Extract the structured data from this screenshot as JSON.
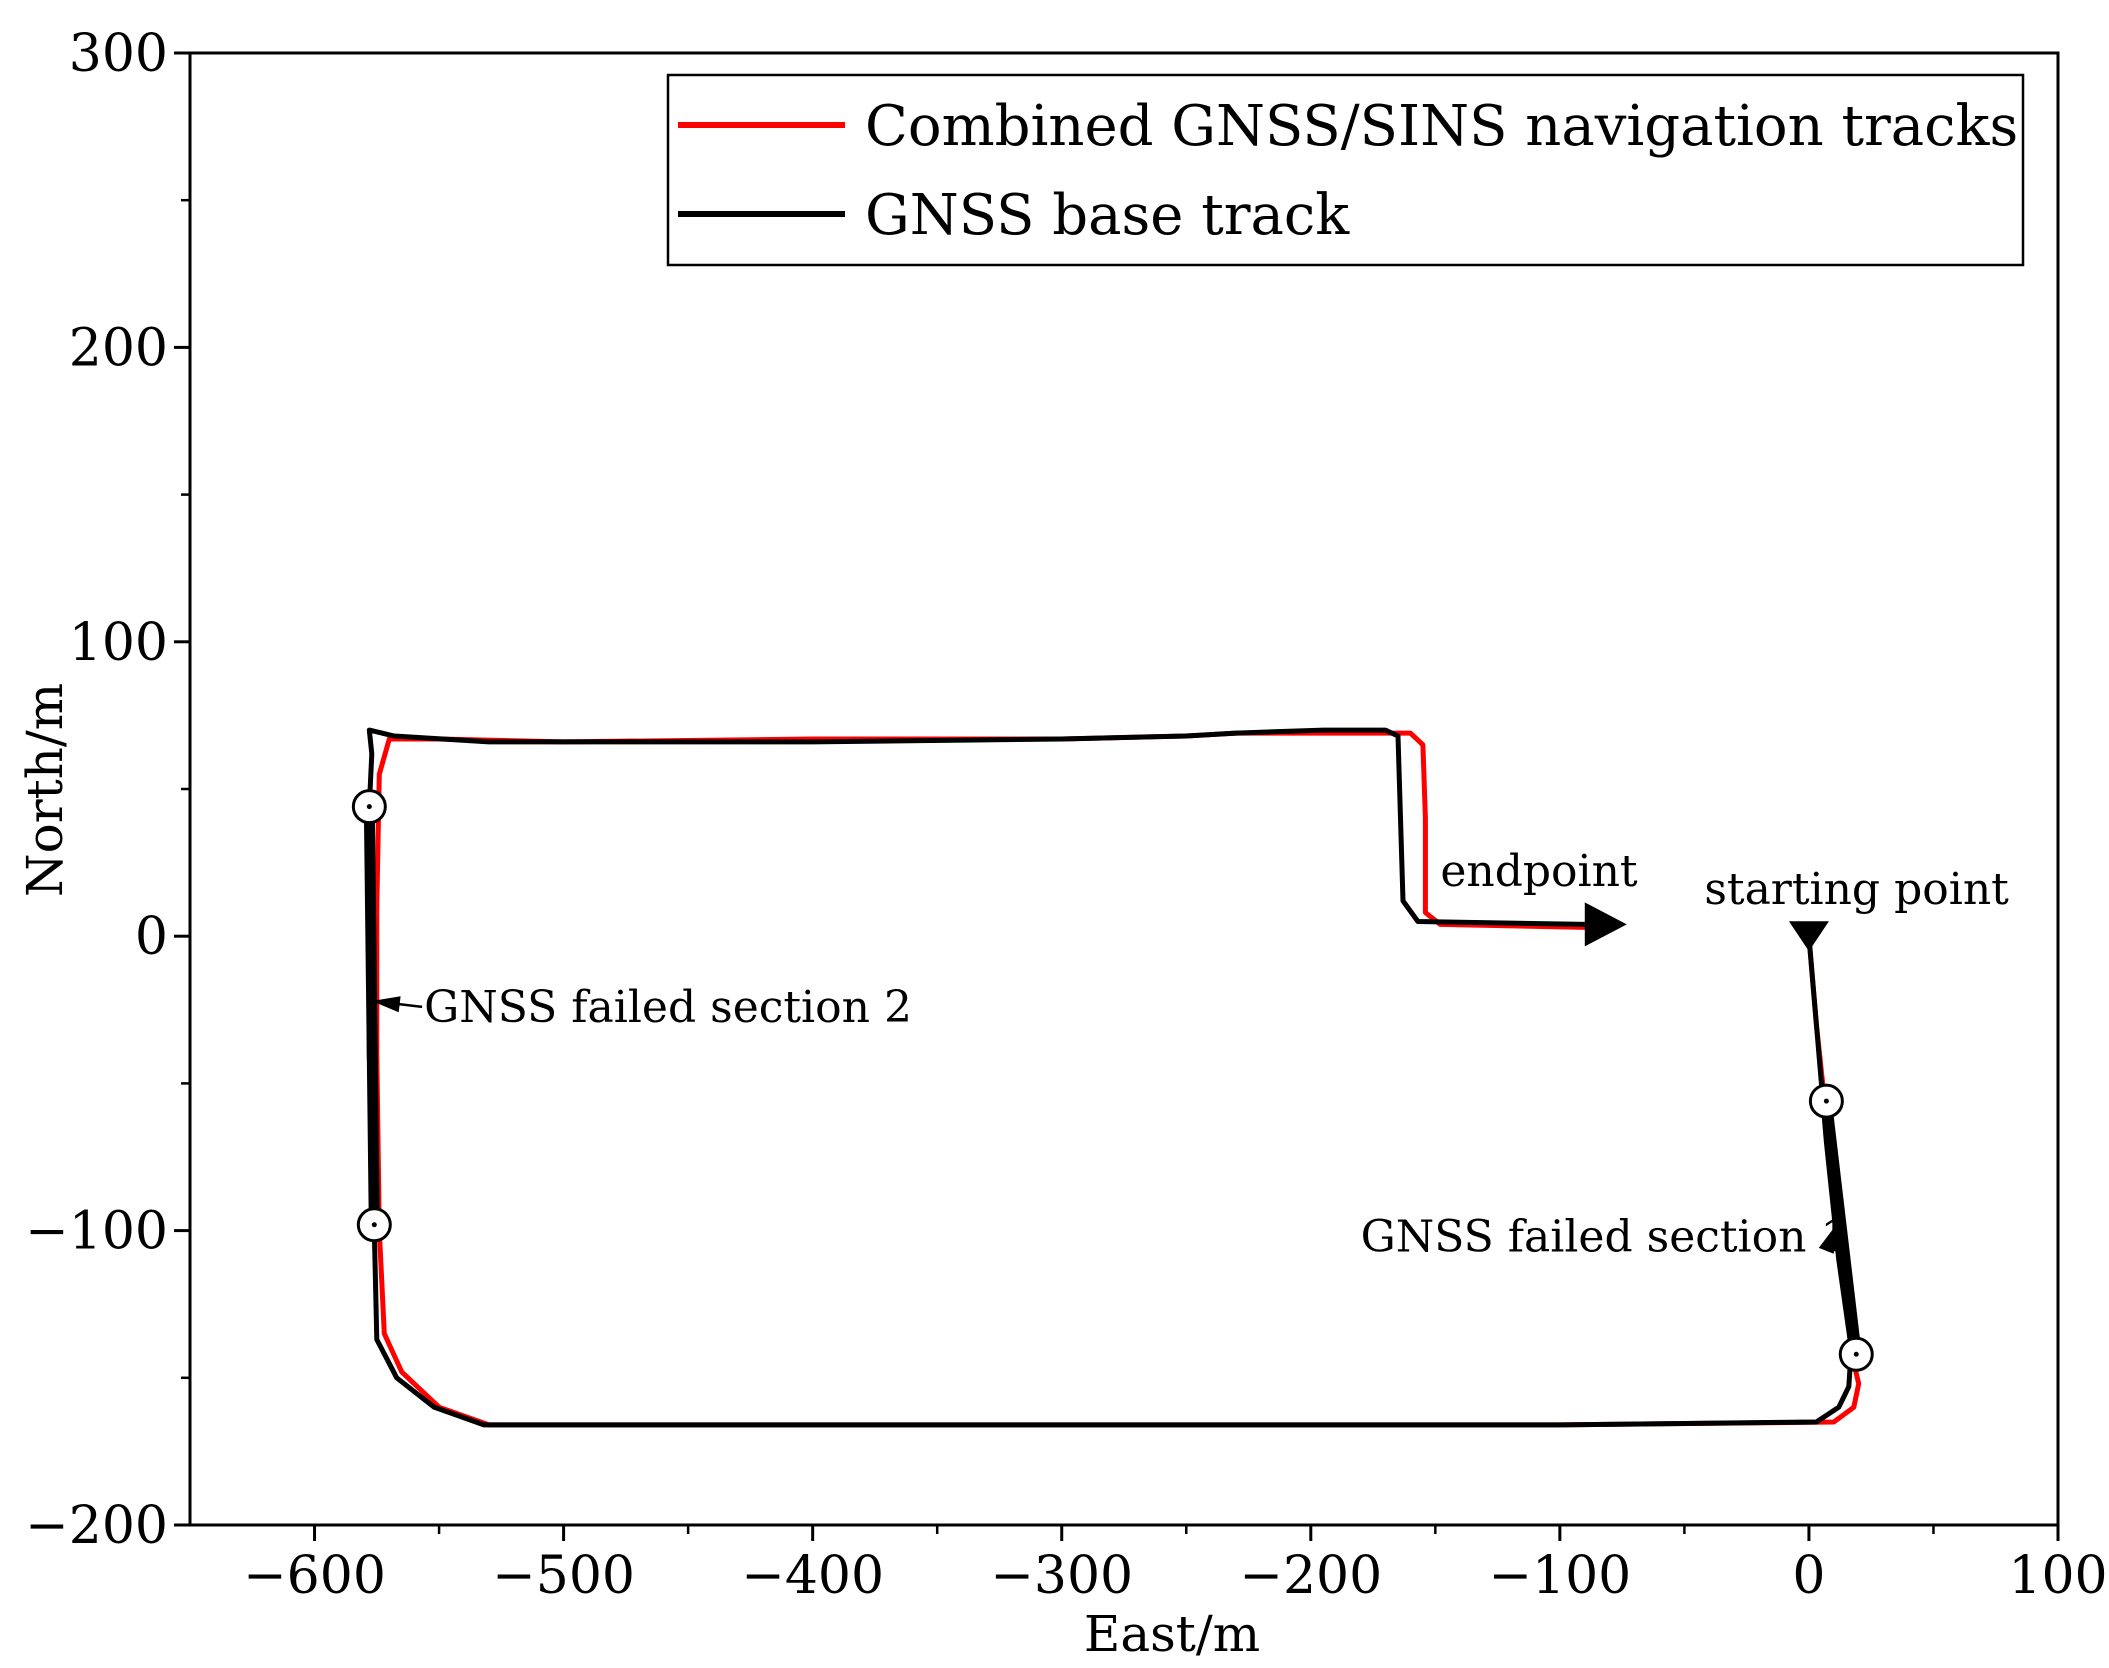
{
  "chart_data": {
    "type": "line",
    "xlabel": "East/m",
    "ylabel": "North/m",
    "xlim": [
      -650,
      100
    ],
    "ylim": [
      -200,
      300
    ],
    "x_ticks": [
      -600,
      -500,
      -400,
      -300,
      -200,
      -100,
      0,
      100
    ],
    "y_ticks": [
      -200,
      -100,
      0,
      100,
      200,
      300
    ],
    "x_tick_labels": [
      "−600",
      "−500",
      "−400",
      "−300",
      "−200",
      "−100",
      "0",
      "100"
    ],
    "y_tick_labels": [
      "−200",
      "−100",
      "0",
      "100",
      "200",
      "300"
    ],
    "grid": false,
    "legend_position": "top-right",
    "series": [
      {
        "name": "Combined GNSS/SINS navigation tracks",
        "color": "#ff0000",
        "points": [
          [
            0,
            0
          ],
          [
            3,
            -30
          ],
          [
            8,
            -70
          ],
          [
            13,
            -110
          ],
          [
            18,
            -145
          ],
          [
            20,
            -152
          ],
          [
            18,
            -160
          ],
          [
            10,
            -165
          ],
          [
            -100,
            -166
          ],
          [
            -300,
            -166
          ],
          [
            -400,
            -166
          ],
          [
            -500,
            -166
          ],
          [
            -530,
            -166
          ],
          [
            -550,
            -160
          ],
          [
            -565,
            -148
          ],
          [
            -572,
            -135
          ],
          [
            -574,
            -100
          ],
          [
            -575,
            -40
          ],
          [
            -575,
            10
          ],
          [
            -574,
            55
          ],
          [
            -570,
            67
          ],
          [
            -550,
            67
          ],
          [
            -500,
            66
          ],
          [
            -400,
            67
          ],
          [
            -300,
            67
          ],
          [
            -250,
            68
          ],
          [
            -230,
            69
          ],
          [
            -190,
            69
          ],
          [
            -160,
            69
          ],
          [
            -155,
            65
          ],
          [
            -154,
            40
          ],
          [
            -154,
            8
          ],
          [
            -148,
            4
          ],
          [
            -90,
            3
          ]
        ]
      },
      {
        "name": "GNSS base track",
        "color": "#000000",
        "points": [
          [
            0,
            0
          ],
          [
            3,
            -30
          ],
          [
            7,
            -70
          ],
          [
            12,
            -110
          ],
          [
            17,
            -140
          ],
          [
            16,
            -153
          ],
          [
            12,
            -160
          ],
          [
            3,
            -165
          ],
          [
            -100,
            -166
          ],
          [
            -300,
            -166
          ],
          [
            -400,
            -166
          ],
          [
            -500,
            -166
          ],
          [
            -532,
            -166
          ],
          [
            -552,
            -160
          ],
          [
            -567,
            -150
          ],
          [
            -575,
            -137
          ],
          [
            -576,
            -100
          ],
          [
            -578,
            -40
          ],
          [
            -578,
            10
          ],
          [
            -578,
            44
          ],
          [
            -577,
            62
          ],
          [
            -578,
            70
          ],
          [
            -568,
            68
          ],
          [
            -530,
            66
          ],
          [
            -400,
            66
          ],
          [
            -300,
            67
          ],
          [
            -250,
            68
          ],
          [
            -230,
            69
          ],
          [
            -195,
            70
          ],
          [
            -170,
            70
          ],
          [
            -165,
            68
          ],
          [
            -164,
            40
          ],
          [
            -163,
            12
          ],
          [
            -157,
            5
          ],
          [
            -90,
            4
          ]
        ]
      }
    ],
    "failed_sections": [
      {
        "label": "GNSS failed section 1",
        "start": [
          7,
          -56
        ],
        "end": [
          19,
          -142
        ],
        "label_at": [
          -180,
          -102
        ],
        "arrow_to": [
          11,
          -98
        ]
      },
      {
        "label": "GNSS failed section 2",
        "start": [
          -578,
          44
        ],
        "end": [
          -576,
          -98
        ],
        "label_at": [
          -556,
          -24
        ],
        "arrow_to": [
          -577,
          -22
        ]
      }
    ],
    "annotations": [
      {
        "text": "endpoint",
        "at": [
          -148,
          17
        ]
      },
      {
        "text": "starting point",
        "at": [
          -42,
          11
        ]
      }
    ],
    "markers": {
      "start_triangle": [
        0,
        0
      ],
      "end_arrow": [
        -90,
        4
      ],
      "circles": [
        [
          -578,
          44
        ],
        [
          -576,
          -98
        ],
        [
          7,
          -56
        ],
        [
          19,
          -142
        ]
      ]
    }
  }
}
